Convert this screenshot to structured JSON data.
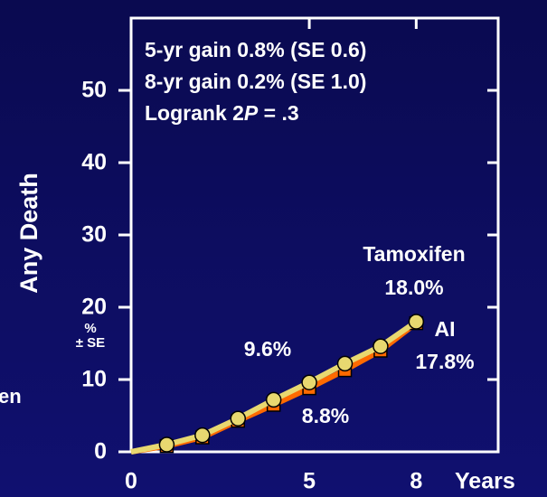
{
  "chart_data": {
    "type": "line",
    "x": [
      0,
      1,
      2,
      3,
      4,
      5,
      6,
      7,
      8
    ],
    "series": [
      {
        "name": "AI",
        "color": "#ff6a00",
        "marker": "square",
        "values": [
          0,
          0.8,
          2.0,
          4.3,
          6.5,
          8.8,
          11.3,
          14.0,
          17.8
        ],
        "value_labels": [
          null,
          null,
          null,
          null,
          null,
          "8.8%",
          null,
          null,
          "17.8%"
        ]
      },
      {
        "name": "Tamoxifen",
        "color": "#e8d870",
        "marker": "circle",
        "values": [
          0,
          1.0,
          2.3,
          4.6,
          7.2,
          9.6,
          12.2,
          14.6,
          18.0
        ],
        "value_labels": [
          null,
          null,
          null,
          null,
          null,
          "9.6%",
          null,
          null,
          "18.0%"
        ]
      }
    ],
    "xlim": [
      0,
      10.3
    ],
    "ylim": [
      0,
      60
    ],
    "xticks": [
      0,
      5,
      8
    ],
    "yticks": [
      0,
      10,
      20,
      30,
      40,
      50
    ],
    "x_label": "Years",
    "y_label": "Any Death",
    "y_unit": [
      "%",
      "± SE"
    ],
    "stats": [
      "5-yr gain 0.8% (SE 0.6)",
      "8-yr gain 0.2% (SE 1.0)",
      [
        "Logrank 2",
        "P",
        " = .3"
      ]
    ],
    "cropped_label": "en"
  }
}
